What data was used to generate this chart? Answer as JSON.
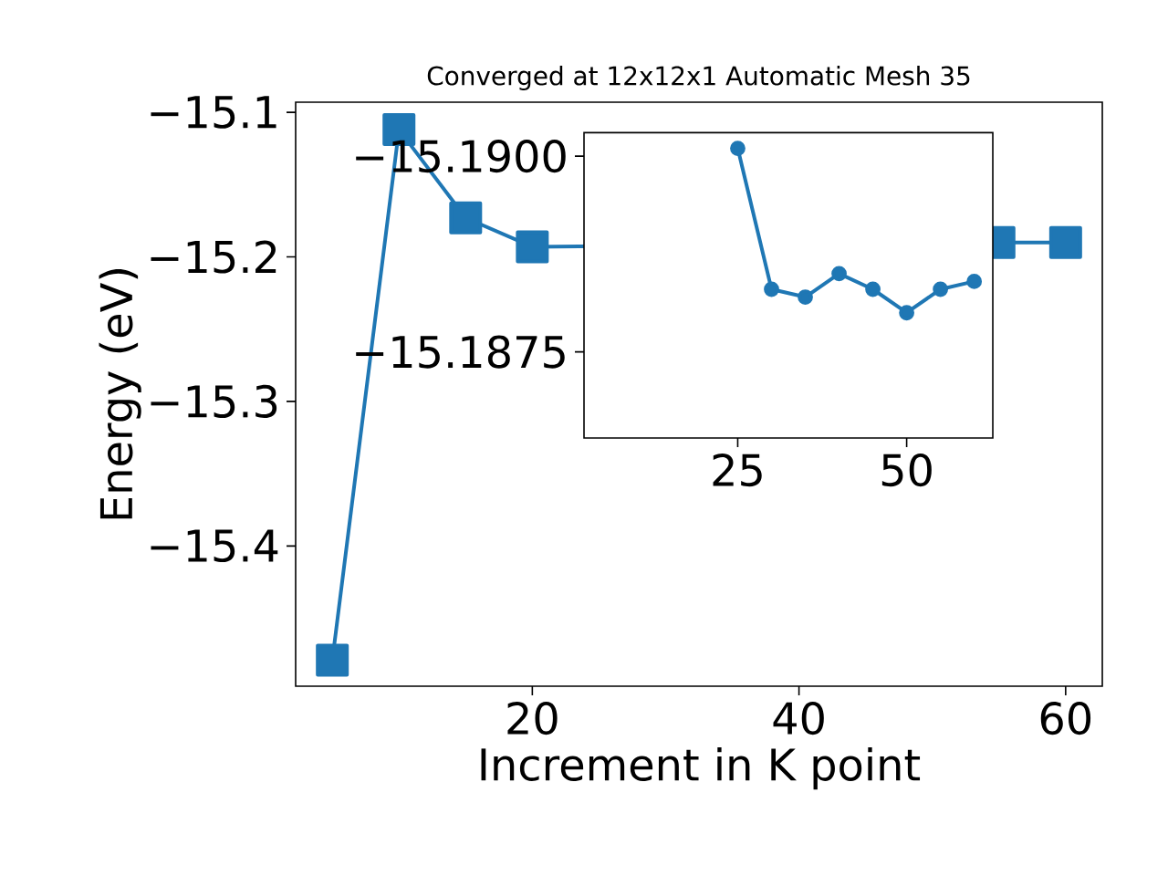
{
  "chart_data": [
    {
      "type": "line",
      "title": "Converged at 12x12x1 Automatic Mesh 35",
      "xlabel": "Increment in K point",
      "ylabel": "Energy (eV)",
      "x": [
        5,
        10,
        15,
        20,
        25,
        30,
        35,
        40,
        45,
        50,
        55,
        60
      ],
      "series": [
        {
          "color": "#1f77b4",
          "values": [
            -15.479,
            -15.112,
            -15.173,
            -15.193,
            null,
            null,
            null,
            null,
            null,
            null,
            -15.19,
            -15.19
          ]
        }
      ],
      "xlim": [
        2.25,
        62.75
      ],
      "ylim": [
        -15.497,
        -15.093
      ],
      "xticks": [
        20,
        40,
        60
      ],
      "yticks": [
        {
          "value": -15.1,
          "label": "−15.1"
        },
        {
          "value": -15.2,
          "label": "−15.2"
        },
        {
          "value": -15.3,
          "label": "−15.3"
        },
        {
          "value": -15.4,
          "label": "−15.4"
        }
      ],
      "marker": "square",
      "grid": false
    },
    {
      "type": "line",
      "x": [
        25,
        30,
        35,
        40,
        45,
        50,
        55,
        60
      ],
      "series": [
        {
          "color": "#1f77b4",
          "values": [
            -15.1901,
            -15.1883,
            -15.1882,
            -15.1885,
            -15.1883,
            -15.188,
            -15.1883,
            -15.1884
          ]
        }
      ],
      "xlim": [
        2.25,
        62.75
      ],
      "ylim": [
        -15.1864,
        -15.1903
      ],
      "xticks": [
        25,
        50
      ],
      "yticks": [
        {
          "value": -15.19,
          "label": "−15.1900"
        },
        {
          "value": -15.1875,
          "label": "−15.1875"
        }
      ],
      "marker": "circle",
      "grid": false
    }
  ]
}
